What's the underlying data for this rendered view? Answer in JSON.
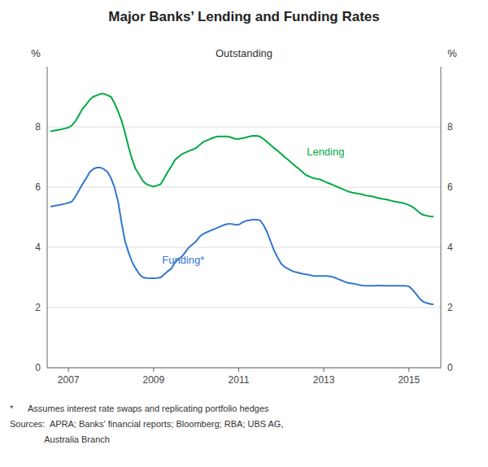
{
  "chart_data": {
    "type": "line",
    "title": "Major Banks’ Lending and Funding Rates",
    "subtitle": "Outstanding",
    "ylabel": "%",
    "y2label": "%",
    "xlim": [
      2006.5,
      2015.75
    ],
    "xticks": [
      2007,
      2009,
      2011,
      2013,
      2015
    ],
    "ylim": [
      0,
      10
    ],
    "yticks": [
      0,
      2,
      4,
      6,
      8
    ],
    "y2lim": [
      0,
      10
    ],
    "y2ticks": [
      0,
      2,
      4,
      6,
      8
    ],
    "grid": true,
    "x": [
      2006.58,
      2006.67,
      2006.75,
      2006.83,
      2006.92,
      2007.0,
      2007.08,
      2007.17,
      2007.25,
      2007.33,
      2007.42,
      2007.5,
      2007.58,
      2007.67,
      2007.75,
      2007.83,
      2007.92,
      2008.0,
      2008.08,
      2008.17,
      2008.25,
      2008.33,
      2008.42,
      2008.5,
      2008.58,
      2008.67,
      2008.75,
      2008.83,
      2008.92,
      2009.0,
      2009.08,
      2009.17,
      2009.25,
      2009.33,
      2009.42,
      2009.5,
      2009.58,
      2009.67,
      2009.75,
      2009.83,
      2009.92,
      2010.0,
      2010.08,
      2010.17,
      2010.25,
      2010.33,
      2010.42,
      2010.5,
      2010.58,
      2010.67,
      2010.75,
      2010.83,
      2010.92,
      2011.0,
      2011.08,
      2011.17,
      2011.25,
      2011.33,
      2011.42,
      2011.5,
      2011.58,
      2011.67,
      2011.75,
      2011.83,
      2011.92,
      2012.0,
      2012.08,
      2012.17,
      2012.25,
      2012.33,
      2012.42,
      2012.5,
      2012.58,
      2012.67,
      2012.75,
      2012.83,
      2012.92,
      2013.0,
      2013.08,
      2013.17,
      2013.25,
      2013.33,
      2013.42,
      2013.5,
      2013.58,
      2013.67,
      2013.75,
      2013.83,
      2013.92,
      2014.0,
      2014.08,
      2014.17,
      2014.25,
      2014.33,
      2014.42,
      2014.5,
      2014.58,
      2014.67,
      2014.75,
      2014.83,
      2014.92,
      2015.0,
      2015.08,
      2015.17,
      2015.25,
      2015.33,
      2015.42,
      2015.5,
      2015.58
    ],
    "series": [
      {
        "color": "#00AA44",
        "values": [
          7.85,
          7.88,
          7.9,
          7.92,
          7.95,
          7.98,
          8.05,
          8.2,
          8.4,
          8.6,
          8.75,
          8.9,
          9.0,
          9.05,
          9.1,
          9.1,
          9.05,
          9.0,
          8.8,
          8.5,
          8.2,
          7.8,
          7.3,
          6.9,
          6.6,
          6.4,
          6.2,
          6.1,
          6.05,
          6.02,
          6.05,
          6.1,
          6.3,
          6.5,
          6.7,
          6.9,
          7.0,
          7.1,
          7.15,
          7.2,
          7.25,
          7.3,
          7.4,
          7.5,
          7.55,
          7.6,
          7.65,
          7.68,
          7.68,
          7.68,
          7.68,
          7.65,
          7.6,
          7.6,
          7.62,
          7.65,
          7.68,
          7.7,
          7.7,
          7.68,
          7.6,
          7.5,
          7.4,
          7.3,
          7.2,
          7.1,
          7.0,
          6.9,
          6.8,
          6.7,
          6.6,
          6.5,
          6.4,
          6.35,
          6.3,
          6.28,
          6.25,
          6.2,
          6.15,
          6.1,
          6.05,
          6.0,
          5.95,
          5.9,
          5.85,
          5.82,
          5.8,
          5.78,
          5.75,
          5.72,
          5.7,
          5.68,
          5.65,
          5.62,
          5.6,
          5.58,
          5.55,
          5.52,
          5.5,
          5.48,
          5.45,
          5.4,
          5.35,
          5.25,
          5.15,
          5.08,
          5.05,
          5.03,
          5.02
        ]
      },
      {
        "color": "#3377CC",
        "values": [
          5.35,
          5.38,
          5.4,
          5.42,
          5.45,
          5.48,
          5.52,
          5.7,
          5.9,
          6.1,
          6.3,
          6.5,
          6.6,
          6.65,
          6.65,
          6.6,
          6.5,
          6.3,
          6.0,
          5.5,
          4.8,
          4.2,
          3.8,
          3.5,
          3.3,
          3.1,
          3.0,
          2.98,
          2.97,
          2.97,
          2.98,
          3.0,
          3.1,
          3.2,
          3.3,
          3.5,
          3.6,
          3.7,
          3.85,
          4.0,
          4.1,
          4.2,
          4.35,
          4.45,
          4.5,
          4.55,
          4.6,
          4.65,
          4.7,
          4.75,
          4.78,
          4.78,
          4.75,
          4.75,
          4.82,
          4.88,
          4.9,
          4.92,
          4.92,
          4.9,
          4.75,
          4.5,
          4.2,
          3.9,
          3.65,
          3.45,
          3.35,
          3.28,
          3.22,
          3.18,
          3.15,
          3.12,
          3.1,
          3.08,
          3.05,
          3.05,
          3.05,
          3.05,
          3.05,
          3.03,
          3.0,
          2.95,
          2.9,
          2.85,
          2.82,
          2.8,
          2.78,
          2.75,
          2.73,
          2.72,
          2.72,
          2.72,
          2.73,
          2.73,
          2.72,
          2.72,
          2.72,
          2.72,
          2.72,
          2.72,
          2.72,
          2.7,
          2.6,
          2.45,
          2.3,
          2.2,
          2.15,
          2.12,
          2.1
        ]
      }
    ],
    "annotations": [
      {
        "text": "Lending",
        "x": 2012.6,
        "y": 7.05,
        "color": "#00AA44"
      },
      {
        "text": "Funding*",
        "x": 2009.2,
        "y": 3.45,
        "color": "#3377CC"
      }
    ],
    "footnotes": [
      "*      Assumes interest rate swaps and replicating portfolio hedges",
      "Sources:  APRA; Banks’ financial reports; Bloomberg; RBA; UBS AG,",
      "              Australia Branch"
    ]
  }
}
